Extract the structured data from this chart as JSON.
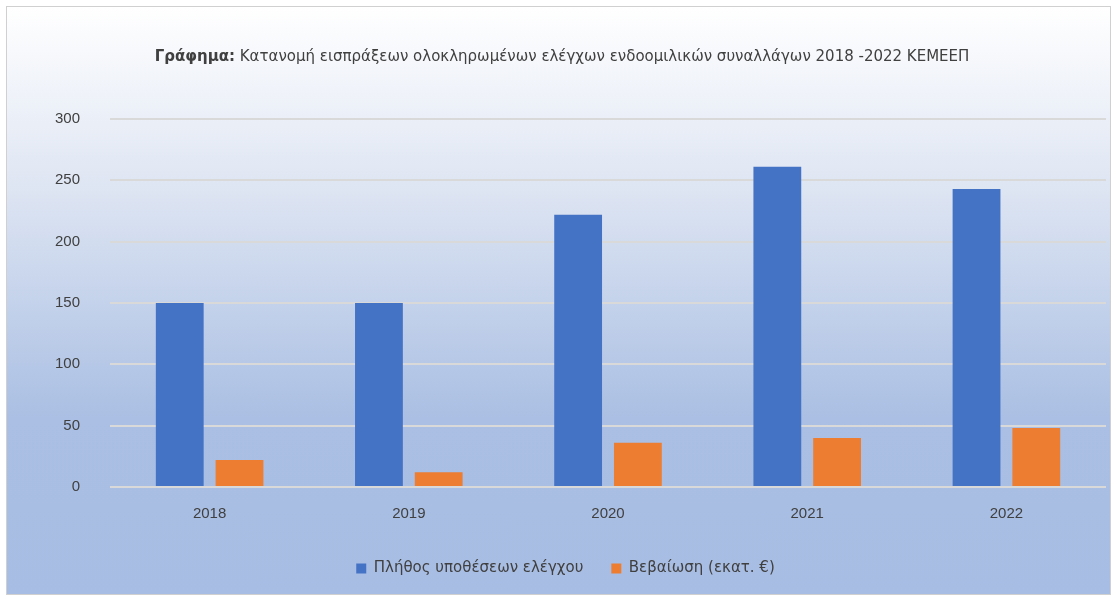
{
  "chart_data": {
    "type": "bar",
    "title": "Γράφημα: Κατανομή εισπράξεων ολοκληρωμένων ελέγχων ενδοομιλικών συναλλάγων 2018 -2022 ΚΕΜΕΕΠ",
    "categories": [
      "2018",
      "2019",
      "2020",
      "2021",
      "2022"
    ],
    "series": [
      {
        "name": "Πλήθος υποθέσεων ελέγχου",
        "color": "#4472c4",
        "values": [
          150,
          150,
          222,
          261,
          243
        ]
      },
      {
        "name": "Βεβαίωση (εκατ. €)",
        "color": "#ed7d31",
        "values": [
          22,
          12,
          36,
          40,
          48
        ]
      }
    ],
    "ylim": [
      0,
      300
    ],
    "yticks": [
      0,
      50,
      100,
      150,
      200,
      250,
      300
    ],
    "grid": "y",
    "legend": "bottom"
  }
}
